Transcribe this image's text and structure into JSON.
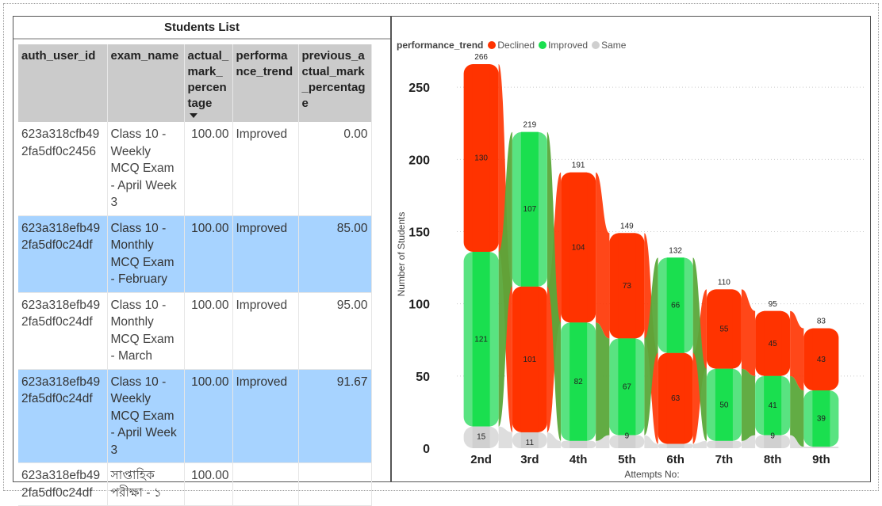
{
  "table": {
    "title": "Students List",
    "columns": [
      "auth_user_id",
      "exam_name",
      "actual_mark_percentage",
      "performance_trend",
      "previous_actual_mark_percentage"
    ],
    "rows": [
      {
        "auth_user_id": "623a318cfb492fa5df0c2456",
        "exam_name": "Class 10 - Weekly MCQ Exam - April Week 3",
        "actual": "100.00",
        "trend": "Improved",
        "previous": "0.00",
        "selected": false
      },
      {
        "auth_user_id": "623a318efb492fa5df0c24df",
        "exam_name": "Class 10 - Monthly MCQ Exam - February",
        "actual": "100.00",
        "trend": "Improved",
        "previous": "85.00",
        "selected": true
      },
      {
        "auth_user_id": "623a318efb492fa5df0c24df",
        "exam_name": "Class 10 - Monthly MCQ Exam - March",
        "actual": "100.00",
        "trend": "Improved",
        "previous": "95.00",
        "selected": false
      },
      {
        "auth_user_id": "623a318efb492fa5df0c24df",
        "exam_name": "Class 10 - Weekly MCQ Exam - April Week 3",
        "actual": "100.00",
        "trend": "Improved",
        "previous": "91.67",
        "selected": true
      },
      {
        "auth_user_id": "623a318efb492fa5df0c24df",
        "exam_name": "সাপ্তাহিক পরীক্ষা - ১",
        "actual": "100.00",
        "trend": "",
        "previous": "",
        "selected": false
      }
    ]
  },
  "chart_data": {
    "type": "area",
    "legend_title": "performance_trend",
    "legend_position": "top-left",
    "xlabel": "Attempts No:",
    "ylabel": "Number of Students",
    "categories": [
      "2nd",
      "3rd",
      "4th",
      "5th",
      "6th",
      "7th",
      "8th",
      "9th"
    ],
    "ylim": [
      0,
      266
    ],
    "yticks": [
      0,
      50,
      100,
      150,
      200,
      250
    ],
    "grid": true,
    "series": [
      {
        "name": "Declined",
        "color": "#ff3300",
        "values": [
          130,
          101,
          104,
          73,
          63,
          55,
          45,
          43
        ]
      },
      {
        "name": "Improved",
        "color": "#1adf4f",
        "values": [
          121,
          107,
          82,
          67,
          66,
          50,
          41,
          39
        ]
      },
      {
        "name": "Same",
        "color": "#d2d2d2",
        "values": [
          15,
          11,
          5,
          9,
          3,
          5,
          9,
          1
        ]
      }
    ],
    "totals": [
      266,
      219,
      191,
      149,
      132,
      110,
      95,
      83
    ],
    "segment_labels": [
      [
        "15",
        "121",
        "130"
      ],
      [
        "11",
        "101",
        "107"
      ],
      [
        "",
        "82",
        "104"
      ],
      [
        "9",
        "67",
        "73"
      ],
      [
        "",
        "63",
        "66"
      ],
      [
        "",
        "50",
        "55"
      ],
      [
        "9",
        "41",
        "45"
      ],
      [
        "",
        "39",
        "43"
      ]
    ]
  }
}
